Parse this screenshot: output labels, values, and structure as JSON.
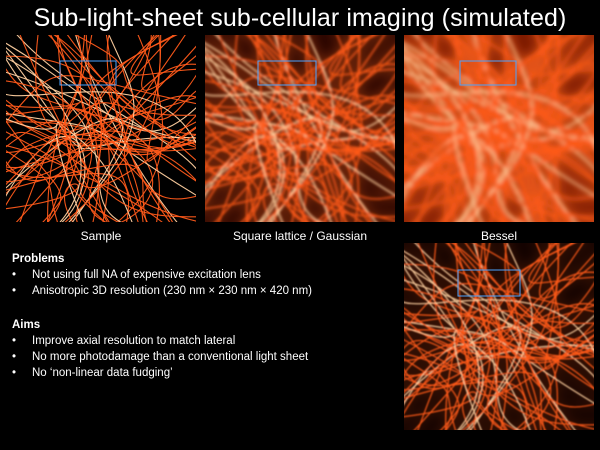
{
  "title": "Sub-light-sheet sub-cellular imaging (simulated)",
  "panels": [
    {
      "caption": "Sample",
      "style": "sharp"
    },
    {
      "caption": "Square lattice / Gaussian",
      "style": "blurred"
    },
    {
      "caption": "Bessel",
      "style": "hazy"
    },
    {
      "caption": "",
      "style": "improved"
    }
  ],
  "colors": {
    "background": "#000000",
    "filament": "#ff5a1a",
    "filament_hot": "#ffd0a0",
    "roi_box": "#4aa3ff"
  },
  "problems": {
    "heading": "Problems",
    "items": [
      "Not using full NA of expensive excitation lens",
      "Anisotropic 3D resolution (230 nm × 230 nm × 420 nm)"
    ]
  },
  "aims": {
    "heading": "Aims",
    "items": [
      "Improve axial resolution to match lateral",
      "No more photodamage than a conventional light sheet",
      "No ‘non-linear data fudging’"
    ]
  }
}
